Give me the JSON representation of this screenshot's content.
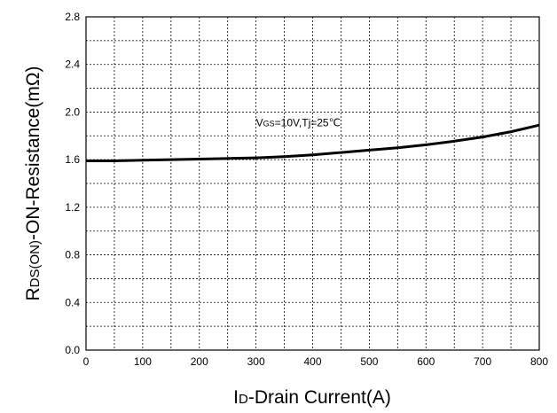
{
  "chart_data": {
    "type": "line",
    "xlabel": {
      "main": "I",
      "sub": "D",
      "rest": "-Drain Current(A)"
    },
    "ylabel": {
      "main": "R",
      "sub": "DS(ON)",
      "rest": "-ON-Resistance(mΩ)"
    },
    "xlim": [
      0,
      800
    ],
    "ylim": [
      0.0,
      2.8
    ],
    "x_ticks": [
      "0",
      "100",
      "200",
      "300",
      "400",
      "500",
      "600",
      "700",
      "800"
    ],
    "y_ticks": [
      "0.0",
      "0.4",
      "0.8",
      "1.2",
      "1.6",
      "2.0",
      "2.4",
      "2.8"
    ],
    "x_grid_step": 50,
    "y_grid_step": 0.2,
    "grid": true,
    "annotation": {
      "main": "V",
      "sub": "GS",
      "rest": "=10V,Tj=25℃",
      "x": 300,
      "y": 1.88
    },
    "series": [
      {
        "x": [
          0,
          50,
          100,
          150,
          200,
          250,
          300,
          350,
          400,
          450,
          500,
          550,
          600,
          650,
          700,
          750,
          800
        ],
        "y": [
          1.59,
          1.59,
          1.595,
          1.6,
          1.605,
          1.61,
          1.615,
          1.625,
          1.64,
          1.66,
          1.68,
          1.7,
          1.725,
          1.755,
          1.79,
          1.835,
          1.89
        ]
      }
    ],
    "line_color": "#000000"
  }
}
